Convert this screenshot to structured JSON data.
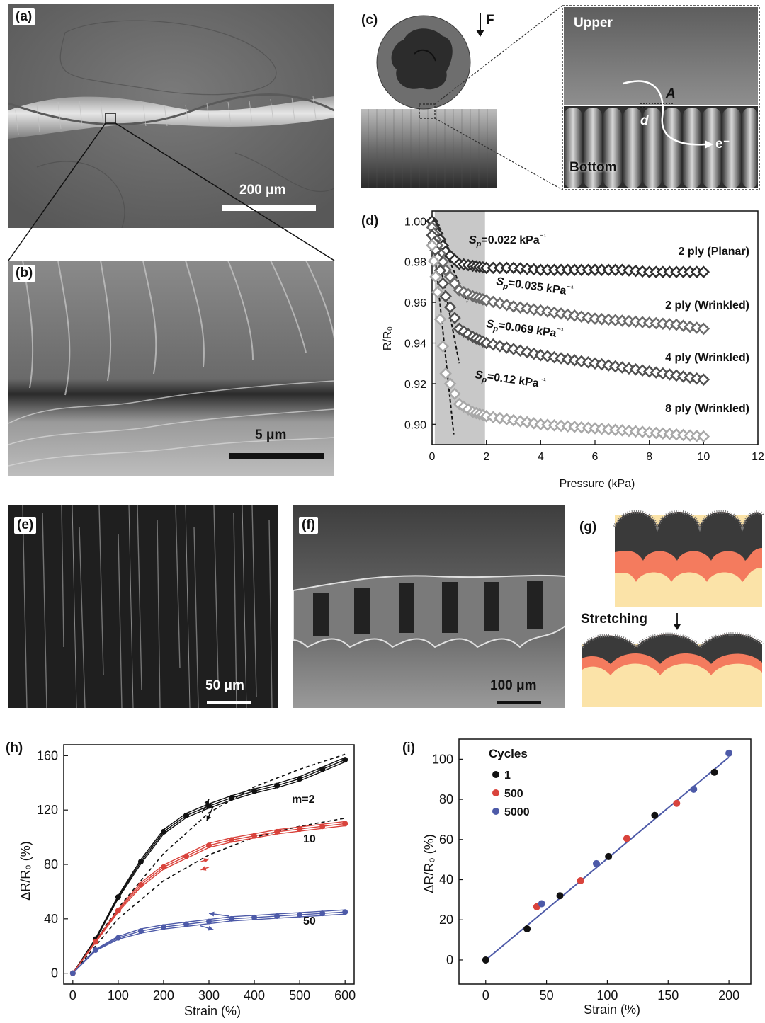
{
  "panels": {
    "a": {
      "label": "(a)",
      "scale": "200 μm"
    },
    "b": {
      "label": "(b)",
      "scale": "5 μm"
    },
    "c": {
      "label": "(c)",
      "force": "F",
      "upper": "Upper",
      "bottom": "Bottom",
      "area": "A",
      "distance": "d",
      "electron": "e⁻"
    },
    "e": {
      "label": "(e)",
      "scale": "50 μm"
    },
    "f": {
      "label": "(f)",
      "scale": "100 μm"
    },
    "g": {
      "label": "(g)",
      "stretching": "Stretching"
    }
  },
  "colors": {
    "black_series": "#111111",
    "red_series": "#d9433c",
    "blue_series": "#4d5aa8",
    "dark_gray": "#3a3a3a",
    "mid_gray": "#6e6e6e",
    "light_gray": "#9a9a9a",
    "orange_layer": "#f47b5e",
    "beige_layer": "#fbe3a8",
    "shade": "#c8c8c8"
  },
  "chart_data": [
    {
      "id": "d",
      "label": "(d)",
      "type": "scatter",
      "xlabel": "Pressure (kPa)",
      "ylabel": "R/R₀",
      "xlim": [
        0,
        12
      ],
      "ylim": [
        0.89,
        1.005
      ],
      "xticks": [
        0,
        2,
        4,
        6,
        8,
        10,
        12
      ],
      "yticks": [
        0.9,
        0.92,
        0.94,
        0.96,
        0.98,
        1.0
      ],
      "shaded_region": [
        0.1,
        1.95
      ],
      "series": [
        {
          "name": "2 ply (Planar)",
          "color": "#2e2e2e",
          "sensitivity": "0.022",
          "x": [
            0,
            0.2,
            0.5,
            1,
            1.5,
            2,
            3,
            4,
            5,
            6,
            7,
            8,
            9,
            10
          ],
          "y": [
            1.0,
            0.994,
            0.985,
            0.979,
            0.978,
            0.977,
            0.977,
            0.976,
            0.976,
            0.976,
            0.976,
            0.975,
            0.975,
            0.975
          ]
        },
        {
          "name": "2 ply (Wrinkled)",
          "color": "#6a6a6a",
          "sensitivity": "0.035",
          "x": [
            0,
            0.2,
            0.5,
            1,
            1.5,
            2,
            3,
            4,
            5,
            6,
            7,
            8,
            9,
            10
          ],
          "y": [
            0.997,
            0.988,
            0.976,
            0.966,
            0.963,
            0.961,
            0.958,
            0.956,
            0.954,
            0.952,
            0.951,
            0.95,
            0.949,
            0.947
          ]
        },
        {
          "name": "4 ply (Wrinkled)",
          "color": "#505050",
          "sensitivity": "0.069",
          "x": [
            0,
            0.2,
            0.5,
            1,
            1.5,
            2,
            3,
            4,
            5,
            6,
            7,
            8,
            9,
            10
          ],
          "y": [
            0.993,
            0.982,
            0.963,
            0.947,
            0.943,
            0.94,
            0.937,
            0.934,
            0.932,
            0.93,
            0.928,
            0.926,
            0.924,
            0.922
          ]
        },
        {
          "name": "8 ply (Wrinkled)",
          "color": "#a8a8a8",
          "sensitivity": "0.12",
          "x": [
            0,
            0.2,
            0.5,
            1,
            1.5,
            2,
            3,
            4,
            5,
            6,
            7,
            8,
            9,
            10
          ],
          "y": [
            0.988,
            0.965,
            0.925,
            0.91,
            0.906,
            0.904,
            0.902,
            0.9,
            0.899,
            0.898,
            0.897,
            0.896,
            0.895,
            0.894
          ]
        }
      ],
      "sensitivity_labels": [
        "S",
        "p",
        "=0.022 kPa",
        "=0.035 kPa",
        "=0.069 kPa",
        "=0.12 kPa",
        "⁻¹"
      ]
    },
    {
      "id": "h",
      "label": "(h)",
      "type": "line",
      "xlabel": "Strain (%)",
      "ylabel": "ΔR/R₀ (%)",
      "xlim": [
        -20,
        620
      ],
      "ylim": [
        -8,
        168
      ],
      "xticks": [
        0,
        100,
        200,
        300,
        400,
        500,
        600
      ],
      "yticks": [
        0,
        40,
        80,
        120,
        160
      ],
      "series": [
        {
          "name": "m=2",
          "color": "#111111",
          "x": [
            0,
            50,
            100,
            150,
            200,
            250,
            300,
            350,
            400,
            450,
            500,
            550,
            600
          ],
          "y": [
            0,
            25,
            56,
            82,
            104,
            116,
            123,
            129,
            134,
            138,
            143,
            150,
            157
          ]
        },
        {
          "name": "10",
          "color": "#d9433c",
          "x": [
            0,
            50,
            100,
            150,
            200,
            250,
            300,
            350,
            400,
            450,
            500,
            550,
            600
          ],
          "y": [
            0,
            23,
            46,
            65,
            78,
            86,
            94,
            98,
            101,
            104,
            106,
            108,
            110
          ]
        },
        {
          "name": "50",
          "color": "#4d5aa8",
          "x": [
            0,
            50,
            100,
            150,
            200,
            250,
            300,
            350,
            400,
            450,
            500,
            550,
            600
          ],
          "y": [
            0,
            17,
            26,
            31,
            34,
            36,
            38,
            40,
            41,
            42,
            43,
            44,
            45
          ]
        }
      ],
      "fit_lines": [
        {
          "x": [
            0,
            100,
            200,
            300,
            400,
            500,
            600
          ],
          "y": [
            0,
            48,
            88,
            118,
            137,
            150,
            161
          ]
        },
        {
          "x": [
            0,
            100,
            200,
            300,
            400,
            500,
            600
          ],
          "y": [
            0,
            40,
            68,
            87,
            100,
            108,
            114
          ]
        }
      ]
    },
    {
      "id": "i",
      "label": "(i)",
      "type": "scatter",
      "xlabel": "Strain (%)",
      "ylabel": "ΔR/R₀ (%)",
      "xlim": [
        -22,
        218
      ],
      "ylim": [
        -12,
        110
      ],
      "xticks": [
        0,
        50,
        100,
        150,
        200
      ],
      "yticks": [
        0,
        20,
        40,
        60,
        80,
        100
      ],
      "legend_title": "Cycles",
      "series": [
        {
          "name": "1",
          "color": "#111111",
          "x": [
            0,
            34,
            61,
            101,
            139,
            188
          ],
          "y": [
            0,
            15.5,
            32,
            51.5,
            72,
            93.5
          ]
        },
        {
          "name": "500",
          "color": "#d9433c",
          "x": [
            42,
            78,
            116,
            157
          ],
          "y": [
            26.5,
            39.5,
            60.5,
            78
          ]
        },
        {
          "name": "5000",
          "color": "#4d5aa8",
          "x": [
            46,
            91,
            171,
            200
          ],
          "y": [
            28,
            48,
            85,
            103
          ]
        }
      ],
      "fit_line": {
        "x": [
          0,
          200
        ],
        "y": [
          0,
          101
        ]
      }
    }
  ]
}
